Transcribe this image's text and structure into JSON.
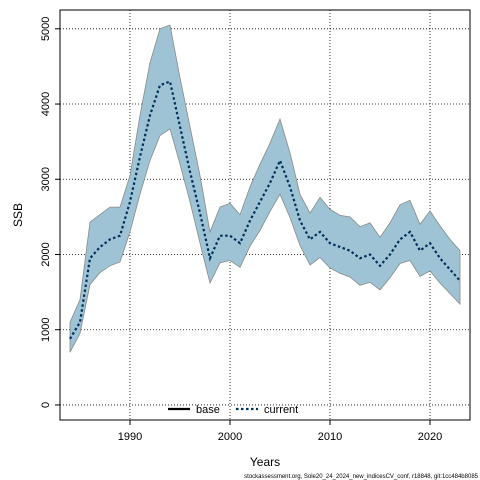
{
  "chart_data": {
    "type": "line",
    "xlabel": "Years",
    "ylabel": "SSB",
    "xlim": [
      1983,
      2024
    ],
    "ylim": [
      -200,
      5250
    ],
    "x_ticks": [
      1990,
      2000,
      2010,
      2020
    ],
    "y_ticks": [
      0,
      1000,
      2000,
      3000,
      4000,
      5000
    ],
    "grid": true,
    "legend_position": "bottom-center",
    "band_color": "#9dc3d5",
    "band_edge_color": "#8a8a8a",
    "series": [
      {
        "name": "base",
        "color": "#000000",
        "style": "solid",
        "visible": false,
        "x": [
          1984,
          1985,
          1986,
          1987,
          1988,
          1989,
          1990,
          1991,
          1992,
          1993,
          1994,
          1995,
          1996,
          1997,
          1998,
          1999,
          2000,
          2001,
          2002,
          2003,
          2004,
          2005,
          2006,
          2007,
          2008,
          2009,
          2010,
          2011,
          2012,
          2013,
          2014,
          2015,
          2016,
          2017,
          2018,
          2019,
          2020,
          2021,
          2022,
          2023
        ],
        "y": [
          880,
          1100,
          1950,
          2100,
          2200,
          2250,
          2700,
          3300,
          3850,
          4250,
          4300,
          3700,
          3100,
          2550,
          1950,
          2250,
          2250,
          2150,
          2450,
          2700,
          2950,
          3250,
          2900,
          2450,
          2200,
          2300,
          2150,
          2100,
          2050,
          1950,
          2000,
          1850,
          2000,
          2200,
          2300,
          2050,
          2150,
          1950,
          1800,
          1650
        ]
      },
      {
        "name": "current",
        "color": "#00305a",
        "style": "dotted",
        "visible": true,
        "x": [
          1984,
          1985,
          1986,
          1987,
          1988,
          1989,
          1990,
          1991,
          1992,
          1993,
          1994,
          1995,
          1996,
          1997,
          1998,
          1999,
          2000,
          2001,
          2002,
          2003,
          2004,
          2005,
          2006,
          2007,
          2008,
          2009,
          2010,
          2011,
          2012,
          2013,
          2014,
          2015,
          2016,
          2017,
          2018,
          2019,
          2020,
          2021,
          2022,
          2023
        ],
        "y": [
          880,
          1100,
          1950,
          2100,
          2200,
          2250,
          2700,
          3300,
          3850,
          4250,
          4300,
          3700,
          3100,
          2550,
          1950,
          2250,
          2250,
          2150,
          2450,
          2700,
          2950,
          3250,
          2900,
          2450,
          2200,
          2300,
          2150,
          2100,
          2050,
          1950,
          2000,
          1850,
          2000,
          2200,
          2300,
          2050,
          2150,
          1950,
          1800,
          1650
        ]
      }
    ],
    "band": {
      "x": [
        1984,
        1985,
        1986,
        1987,
        1988,
        1989,
        1990,
        1991,
        1992,
        1993,
        1994,
        1995,
        1996,
        1997,
        1998,
        1999,
        2000,
        2001,
        2002,
        2003,
        2004,
        2005,
        2006,
        2007,
        2008,
        2009,
        2010,
        2011,
        2012,
        2013,
        2014,
        2015,
        2016,
        2017,
        2018,
        2019,
        2020,
        2021,
        2022,
        2023
      ],
      "upper": [
        1100,
        1400,
        2430,
        2530,
        2630,
        2630,
        3050,
        3850,
        4550,
        5000,
        5050,
        4350,
        3700,
        3050,
        2300,
        2630,
        2680,
        2530,
        2900,
        3200,
        3480,
        3800,
        3350,
        2800,
        2550,
        2760,
        2600,
        2520,
        2500,
        2370,
        2420,
        2230,
        2420,
        2660,
        2720,
        2400,
        2580,
        2380,
        2200,
        2050
      ],
      "lower": [
        700,
        950,
        1600,
        1760,
        1850,
        1900,
        2300,
        2800,
        3250,
        3580,
        3670,
        3200,
        2700,
        2150,
        1620,
        1890,
        1920,
        1830,
        2110,
        2320,
        2570,
        2800,
        2490,
        2120,
        1860,
        1960,
        1820,
        1750,
        1700,
        1590,
        1630,
        1530,
        1690,
        1880,
        1920,
        1710,
        1780,
        1620,
        1480,
        1340
      ]
    },
    "footer_text": "stockassessment.org, Sole20_24_2024_new_indicesCV_conf, r18848, git:1cc484b8085"
  }
}
